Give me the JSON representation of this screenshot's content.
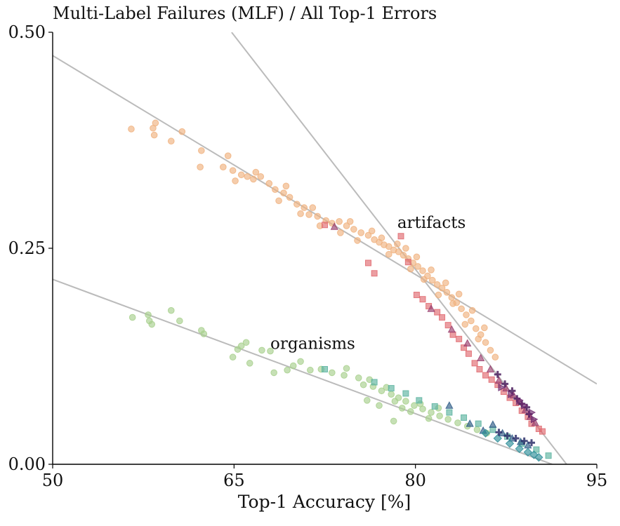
{
  "chart_data": {
    "type": "scatter",
    "title": "Multi-Label Failures (MLF) / All Top-1 Errors",
    "xlabel": "Top-1 Accuracy [%]",
    "ylabel": "",
    "xlim": [
      50,
      95
    ],
    "ylim": [
      0.0,
      0.5
    ],
    "xticks": [
      50,
      65,
      80,
      95
    ],
    "xtick_labels": [
      "50",
      "65",
      "80",
      "95"
    ],
    "yticks": [
      0.0,
      0.25,
      0.5
    ],
    "ytick_labels": [
      "0.00",
      "0.25",
      "0.50"
    ],
    "grid": false,
    "annotations": [
      {
        "text": "artifacts",
        "x": 78.5,
        "y": 0.28
      },
      {
        "text": "organisms",
        "x": 68.0,
        "y": 0.14
      }
    ],
    "trend_lines": [
      {
        "group": "artifacts",
        "points": [
          [
            50,
            0.473
          ],
          [
            95,
            0.093
          ]
        ],
        "color": "#bbbbbb"
      },
      {
        "group": "artifacts",
        "points": [
          [
            64.8,
            0.5
          ],
          [
            92.5,
            0.0
          ]
        ],
        "color": "#bbbbbb"
      },
      {
        "group": "organisms",
        "points": [
          [
            50,
            0.214
          ],
          [
            91.3,
            0.0
          ]
        ],
        "color": "#bbbbbb"
      }
    ],
    "series": [
      {
        "group": "artifacts",
        "marker": "circle",
        "color": "#f0b27f",
        "points": [
          [
            56.5,
            0.388
          ],
          [
            58.3,
            0.389
          ],
          [
            58.5,
            0.395
          ],
          [
            58.4,
            0.381
          ],
          [
            59.8,
            0.374
          ],
          [
            60.7,
            0.385
          ],
          [
            62.3,
            0.363
          ],
          [
            62.2,
            0.344
          ],
          [
            64.1,
            0.344
          ],
          [
            64.5,
            0.357
          ],
          [
            64.9,
            0.34
          ],
          [
            65.1,
            0.328
          ],
          [
            65.6,
            0.335
          ],
          [
            66.1,
            0.333
          ],
          [
            66.6,
            0.33
          ],
          [
            67.2,
            0.333
          ],
          [
            67.9,
            0.325
          ],
          [
            68.4,
            0.318
          ],
          [
            69.1,
            0.314
          ],
          [
            69.6,
            0.309
          ],
          [
            70.2,
            0.301
          ],
          [
            70.8,
            0.297
          ],
          [
            71.2,
            0.289
          ],
          [
            71.9,
            0.287
          ],
          [
            72.6,
            0.282
          ],
          [
            73.1,
            0.279
          ],
          [
            73.7,
            0.281
          ],
          [
            74.3,
            0.276
          ],
          [
            74.9,
            0.272
          ],
          [
            75.5,
            0.268
          ],
          [
            76.1,
            0.265
          ],
          [
            76.6,
            0.26
          ],
          [
            77.0,
            0.257
          ],
          [
            77.4,
            0.254
          ],
          [
            77.8,
            0.252
          ],
          [
            78.2,
            0.248
          ],
          [
            78.6,
            0.246
          ],
          [
            79.0,
            0.242
          ],
          [
            79.4,
            0.238
          ],
          [
            79.8,
            0.233
          ],
          [
            80.2,
            0.229
          ],
          [
            80.6,
            0.224
          ],
          [
            81.0,
            0.218
          ],
          [
            81.4,
            0.213
          ],
          [
            81.8,
            0.208
          ],
          [
            82.2,
            0.204
          ],
          [
            82.6,
            0.199
          ],
          [
            83.0,
            0.193
          ],
          [
            83.4,
            0.187
          ],
          [
            83.8,
            0.18
          ],
          [
            84.2,
            0.173
          ],
          [
            84.6,
            0.166
          ],
          [
            85.0,
            0.157
          ],
          [
            85.4,
            0.15
          ],
          [
            85.8,
            0.141
          ],
          [
            86.2,
            0.132
          ],
          [
            86.6,
            0.124
          ],
          [
            76.4,
            0.27
          ],
          [
            77.2,
            0.262
          ],
          [
            77.8,
            0.243
          ],
          [
            78.5,
            0.255
          ],
          [
            79.2,
            0.25
          ],
          [
            79.6,
            0.226
          ],
          [
            80.1,
            0.24
          ],
          [
            80.7,
            0.214
          ],
          [
            81.3,
            0.225
          ],
          [
            81.9,
            0.196
          ],
          [
            82.5,
            0.21
          ],
          [
            83.1,
            0.186
          ],
          [
            83.6,
            0.197
          ],
          [
            84.1,
            0.162
          ],
          [
            84.7,
            0.178
          ],
          [
            85.2,
            0.145
          ],
          [
            85.7,
            0.158
          ],
          [
            68.7,
            0.305
          ],
          [
            70.5,
            0.29
          ],
          [
            72.1,
            0.276
          ],
          [
            73.8,
            0.268
          ],
          [
            75.2,
            0.259
          ],
          [
            66.8,
            0.338
          ],
          [
            69.3,
            0.322
          ],
          [
            71.5,
            0.297
          ],
          [
            74.6,
            0.281
          ]
        ]
      },
      {
        "group": "artifacts",
        "marker": "square",
        "color": "#e06a70",
        "points": [
          [
            72.5,
            0.277
          ],
          [
            76.1,
            0.233
          ],
          [
            76.6,
            0.221
          ],
          [
            78.8,
            0.264
          ],
          [
            79.4,
            0.234
          ],
          [
            80.1,
            0.196
          ],
          [
            80.6,
            0.191
          ],
          [
            81.1,
            0.183
          ],
          [
            81.8,
            0.176
          ],
          [
            82.2,
            0.17
          ],
          [
            82.7,
            0.161
          ],
          [
            83.1,
            0.15
          ],
          [
            83.6,
            0.145
          ],
          [
            84.0,
            0.135
          ],
          [
            84.4,
            0.128
          ],
          [
            84.9,
            0.117
          ],
          [
            85.3,
            0.11
          ],
          [
            85.8,
            0.103
          ],
          [
            86.3,
            0.098
          ],
          [
            86.8,
            0.092
          ],
          [
            87.3,
            0.084
          ],
          [
            87.8,
            0.077
          ],
          [
            88.3,
            0.071
          ],
          [
            88.8,
            0.062
          ],
          [
            89.3,
            0.055
          ],
          [
            89.6,
            0.047
          ],
          [
            90.2,
            0.041
          ],
          [
            90.5,
            0.038
          ]
        ]
      },
      {
        "group": "artifacts",
        "marker": "triangle",
        "color": "#9a3f6e",
        "points": [
          [
            73.3,
            0.275
          ],
          [
            81.3,
            0.18
          ],
          [
            83.0,
            0.156
          ],
          [
            84.3,
            0.14
          ],
          [
            85.4,
            0.123
          ],
          [
            86.2,
            0.11
          ],
          [
            86.9,
            0.097
          ],
          [
            87.5,
            0.088
          ],
          [
            88.1,
            0.08
          ],
          [
            88.6,
            0.072
          ],
          [
            89.1,
            0.063
          ],
          [
            89.5,
            0.055
          ],
          [
            89.9,
            0.048
          ]
        ]
      },
      {
        "group": "artifacts",
        "marker": "plus",
        "color": "#4b1f5e",
        "points": [
          [
            86.8,
            0.104
          ],
          [
            87.4,
            0.093
          ],
          [
            88.0,
            0.085
          ],
          [
            88.4,
            0.076
          ],
          [
            88.8,
            0.07
          ],
          [
            89.2,
            0.066
          ],
          [
            89.4,
            0.058
          ]
        ]
      },
      {
        "group": "artifacts",
        "marker": "tri-right",
        "color": "#6d2a6f",
        "points": [
          [
            87.1,
            0.089
          ],
          [
            87.9,
            0.081
          ],
          [
            88.6,
            0.074
          ],
          [
            89.0,
            0.068
          ],
          [
            89.6,
            0.06
          ],
          [
            89.8,
            0.052
          ]
        ]
      },
      {
        "group": "organisms",
        "marker": "circle",
        "color": "#a8d08d",
        "points": [
          [
            56.6,
            0.17
          ],
          [
            57.9,
            0.173
          ],
          [
            58.0,
            0.166
          ],
          [
            58.2,
            0.162
          ],
          [
            59.8,
            0.178
          ],
          [
            60.5,
            0.166
          ],
          [
            62.3,
            0.155
          ],
          [
            62.5,
            0.151
          ],
          [
            64.9,
            0.124
          ],
          [
            65.3,
            0.133
          ],
          [
            65.6,
            0.137
          ],
          [
            66.0,
            0.141
          ],
          [
            66.3,
            0.117
          ],
          [
            67.3,
            0.132
          ],
          [
            68.0,
            0.131
          ],
          [
            68.3,
            0.106
          ],
          [
            69.4,
            0.109
          ],
          [
            69.9,
            0.114
          ],
          [
            70.5,
            0.119
          ],
          [
            71.3,
            0.109
          ],
          [
            72.2,
            0.11
          ],
          [
            73.1,
            0.106
          ],
          [
            74.1,
            0.103
          ],
          [
            75.3,
            0.1
          ],
          [
            75.7,
            0.092
          ],
          [
            76.5,
            0.09
          ],
          [
            77.2,
            0.085
          ],
          [
            78.0,
            0.081
          ],
          [
            78.6,
            0.077
          ],
          [
            79.2,
            0.073
          ],
          [
            79.9,
            0.068
          ],
          [
            80.6,
            0.064
          ],
          [
            81.3,
            0.06
          ],
          [
            82.0,
            0.056
          ],
          [
            82.7,
            0.052
          ],
          [
            83.5,
            0.048
          ],
          [
            84.3,
            0.044
          ],
          [
            85.1,
            0.04
          ],
          [
            85.9,
            0.036
          ],
          [
            74.3,
            0.111
          ],
          [
            76.2,
            0.098
          ],
          [
            77.6,
            0.089
          ],
          [
            78.3,
            0.073
          ],
          [
            78.9,
            0.065
          ],
          [
            79.6,
            0.061
          ],
          [
            80.4,
            0.07
          ],
          [
            81.1,
            0.053
          ],
          [
            81.9,
            0.065
          ],
          [
            76.0,
            0.074
          ],
          [
            77.0,
            0.068
          ],
          [
            78.2,
            0.05
          ]
        ]
      },
      {
        "group": "organisms",
        "marker": "square",
        "color": "#5cb3a0",
        "points": [
          [
            72.5,
            0.11
          ],
          [
            76.6,
            0.095
          ],
          [
            78.0,
            0.088
          ],
          [
            79.2,
            0.082
          ],
          [
            80.3,
            0.074
          ],
          [
            81.6,
            0.067
          ],
          [
            82.8,
            0.06
          ],
          [
            84.0,
            0.054
          ],
          [
            85.2,
            0.047
          ],
          [
            86.4,
            0.04
          ],
          [
            87.6,
            0.032
          ],
          [
            88.8,
            0.024
          ],
          [
            90.0,
            0.017
          ],
          [
            91.0,
            0.01
          ]
        ]
      },
      {
        "group": "organisms",
        "marker": "triangle",
        "color": "#2c5b86",
        "points": [
          [
            82.8,
            0.068
          ],
          [
            84.5,
            0.047
          ],
          [
            85.6,
            0.039
          ],
          [
            86.4,
            0.046
          ],
          [
            87.2,
            0.036
          ],
          [
            88.0,
            0.03
          ],
          [
            88.7,
            0.026
          ],
          [
            89.3,
            0.022
          ]
        ]
      },
      {
        "group": "organisms",
        "marker": "diamond",
        "color": "#2f8f9a",
        "points": [
          [
            85.8,
            0.036
          ],
          [
            86.8,
            0.03
          ],
          [
            87.8,
            0.024
          ],
          [
            88.6,
            0.018
          ],
          [
            89.3,
            0.014
          ],
          [
            89.8,
            0.011
          ],
          [
            90.2,
            0.008
          ]
        ]
      },
      {
        "group": "organisms",
        "marker": "plus",
        "color": "#2d2f6a",
        "points": [
          [
            86.9,
            0.037
          ],
          [
            87.6,
            0.033
          ],
          [
            88.3,
            0.03
          ],
          [
            89.0,
            0.027
          ],
          [
            89.6,
            0.025
          ]
        ]
      }
    ]
  }
}
